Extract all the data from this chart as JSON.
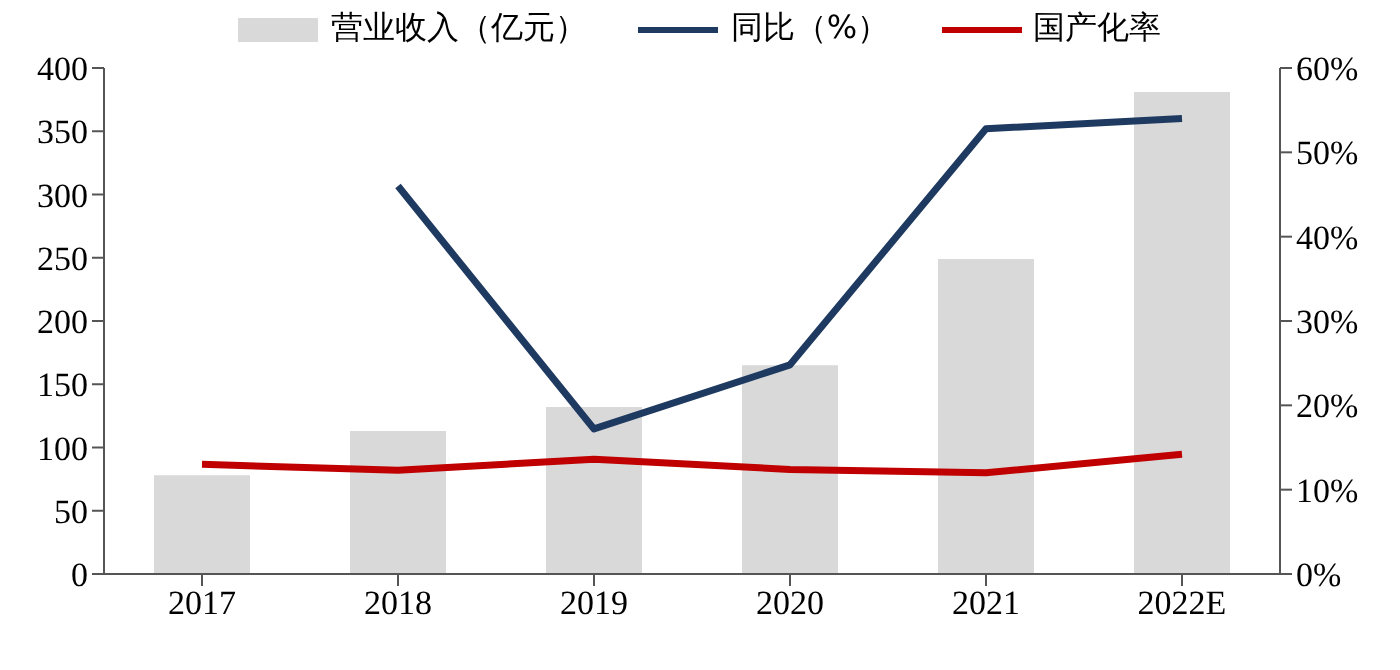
{
  "chart_data": {
    "type": "bar",
    "categories": [
      "2017",
      "2018",
      "2019",
      "2020",
      "2021",
      "2022E"
    ],
    "series": [
      {
        "name": "营业收入（亿元）",
        "color": "#d9d9d9",
        "values": [
          78,
          113,
          132,
          165,
          249,
          381
        ]
      },
      {
        "name": "同比（%）",
        "type": "line",
        "axis": "y2",
        "color": "#1f3a60",
        "values": [
          null,
          46,
          17.2,
          24.8,
          52.8,
          54
        ]
      },
      {
        "name": "国产化率",
        "type": "line",
        "axis": "y2",
        "color": "#c00000",
        "values": [
          13,
          12.3,
          13.6,
          12.4,
          12,
          14.2
        ]
      }
    ],
    "ylim": [
      0,
      400
    ],
    "yticks": [
      0,
      50,
      100,
      150,
      200,
      250,
      300,
      350,
      400
    ],
    "y2lim": [
      0,
      60
    ],
    "y2ticks": [
      {
        "value": 0,
        "label": "0%"
      },
      {
        "value": 10,
        "label": "10%"
      },
      {
        "value": 20,
        "label": "20%"
      },
      {
        "value": 30,
        "label": "30%"
      },
      {
        "value": 40,
        "label": "40%"
      },
      {
        "value": 50,
        "label": "50%"
      },
      {
        "value": 60,
        "label": "60%"
      }
    ],
    "legend": "top",
    "grid": false,
    "marker": "none"
  }
}
